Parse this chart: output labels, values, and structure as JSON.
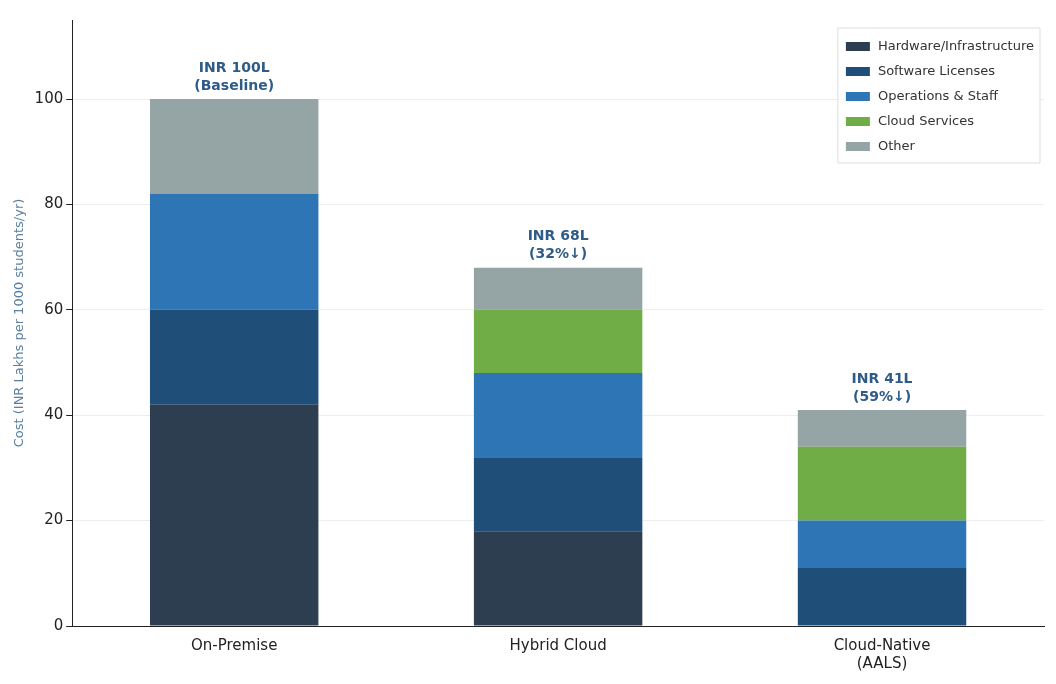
{
  "chart_data": {
    "type": "bar",
    "stacked": true,
    "ylabel": "Cost (INR Lakhs per 1000 students/yr)",
    "categories": [
      "On-Premise",
      "Hybrid Cloud",
      "Cloud-Native\n(AALS)"
    ],
    "series": [
      {
        "name": "Hardware/Infrastructure",
        "color": "#2c3e50",
        "values": [
          42,
          18,
          0
        ]
      },
      {
        "name": "Software Licenses",
        "color": "#1f4e79",
        "values": [
          18,
          14,
          11
        ]
      },
      {
        "name": "Operations & Staff",
        "color": "#2e75b6",
        "values": [
          22,
          16,
          9
        ]
      },
      {
        "name": "Cloud Services",
        "color": "#70ad47",
        "values": [
          0,
          12,
          14
        ]
      },
      {
        "name": "Other",
        "color": "#95a5a6",
        "values": [
          18,
          8,
          7
        ]
      }
    ],
    "totals": [
      "INR 100L\n(Baseline)",
      "INR 68L\n(32%↓)",
      "INR 41L\n(59%↓)"
    ],
    "ylim": [
      0,
      115
    ],
    "yticks": [
      0,
      20,
      40,
      60,
      80,
      100
    ],
    "grid": "y",
    "legend": "top right"
  }
}
